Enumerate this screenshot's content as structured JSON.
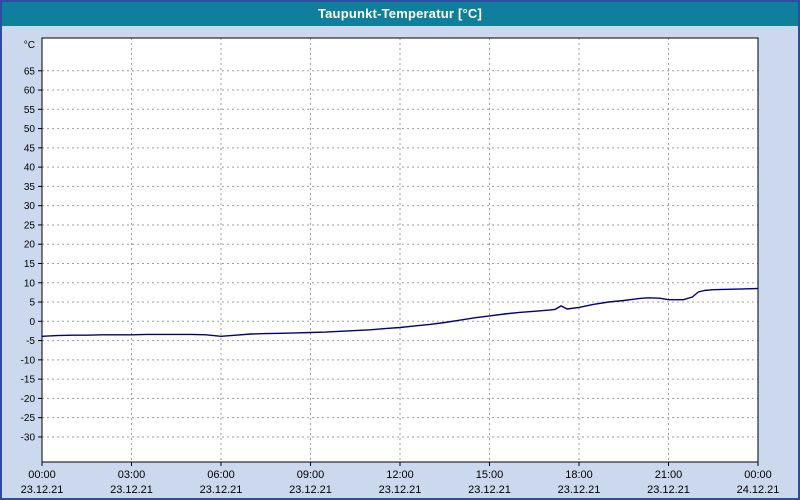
{
  "title_bar": {
    "title": "Taupunkt-Temperatur [°C]"
  },
  "colors": {
    "page_bg": "#ccd8ee",
    "titlebar_bg": "#0f7f9b",
    "titlebar_text": "#ffffff",
    "outer_border": "#2b4ea3",
    "plot_bg": "#ffffff",
    "plot_border": "#000000",
    "grid": "#9aa0a6",
    "axis_text": "#000000",
    "line": "#000080"
  },
  "chart_data": {
    "type": "line",
    "title": "Taupunkt-Temperatur [°C]",
    "y_unit_label": "°C",
    "xlim": [
      0,
      24
    ],
    "ylim": [
      -36.5,
      73.5
    ],
    "grid": true,
    "legend": "none",
    "y_ticks": [
      -30,
      -25,
      -20,
      -15,
      -10,
      -5,
      0,
      5,
      10,
      15,
      20,
      25,
      30,
      35,
      40,
      45,
      50,
      55,
      60,
      65
    ],
    "x_ticks": [
      {
        "hour": 0,
        "time": "00:00",
        "date": "23.12.21"
      },
      {
        "hour": 3,
        "time": "03:00",
        "date": "23.12.21"
      },
      {
        "hour": 6,
        "time": "06:00",
        "date": "23.12.21"
      },
      {
        "hour": 9,
        "time": "09:00",
        "date": "23.12.21"
      },
      {
        "hour": 12,
        "time": "12:00",
        "date": "23.12.21"
      },
      {
        "hour": 15,
        "time": "15:00",
        "date": "23.12.21"
      },
      {
        "hour": 18,
        "time": "18:00",
        "date": "23.12.21"
      },
      {
        "hour": 21,
        "time": "21:00",
        "date": "23.12.21"
      },
      {
        "hour": 24,
        "time": "00:00",
        "date": "24.12.21"
      }
    ],
    "series": [
      {
        "name": "Taupunkt-Temperatur",
        "color": "#000080",
        "points": [
          [
            0,
            -3.9
          ],
          [
            0.5,
            -3.7
          ],
          [
            1,
            -3.6
          ],
          [
            1.5,
            -3.6
          ],
          [
            2,
            -3.5
          ],
          [
            2.5,
            -3.5
          ],
          [
            3,
            -3.5
          ],
          [
            3.5,
            -3.4
          ],
          [
            4,
            -3.4
          ],
          [
            4.5,
            -3.4
          ],
          [
            5,
            -3.4
          ],
          [
            5.5,
            -3.5
          ],
          [
            6,
            -3.9
          ],
          [
            6.5,
            -3.6
          ],
          [
            7,
            -3.3
          ],
          [
            7.5,
            -3.2
          ],
          [
            8,
            -3.1
          ],
          [
            8.5,
            -3.0
          ],
          [
            9,
            -2.9
          ],
          [
            9.5,
            -2.8
          ],
          [
            10,
            -2.6
          ],
          [
            10.5,
            -2.4
          ],
          [
            11,
            -2.2
          ],
          [
            11.5,
            -1.9
          ],
          [
            12,
            -1.6
          ],
          [
            12.5,
            -1.2
          ],
          [
            13,
            -0.8
          ],
          [
            13.5,
            -0.3
          ],
          [
            14,
            0.3
          ],
          [
            14.5,
            0.9
          ],
          [
            15,
            1.4
          ],
          [
            15.5,
            1.9
          ],
          [
            16,
            2.3
          ],
          [
            16.5,
            2.6
          ],
          [
            17,
            2.9
          ],
          [
            17.2,
            3.1
          ],
          [
            17.4,
            4.0
          ],
          [
            17.6,
            3.2
          ],
          [
            18,
            3.6
          ],
          [
            18.5,
            4.4
          ],
          [
            19,
            5.0
          ],
          [
            19.5,
            5.4
          ],
          [
            20,
            5.9
          ],
          [
            20.3,
            6.1
          ],
          [
            20.7,
            6.0
          ],
          [
            21,
            5.6
          ],
          [
            21.5,
            5.6
          ],
          [
            21.8,
            6.3
          ],
          [
            22,
            7.6
          ],
          [
            22.2,
            8.0
          ],
          [
            22.5,
            8.2
          ],
          [
            23,
            8.3
          ],
          [
            23.5,
            8.4
          ],
          [
            24,
            8.5
          ]
        ]
      }
    ]
  }
}
